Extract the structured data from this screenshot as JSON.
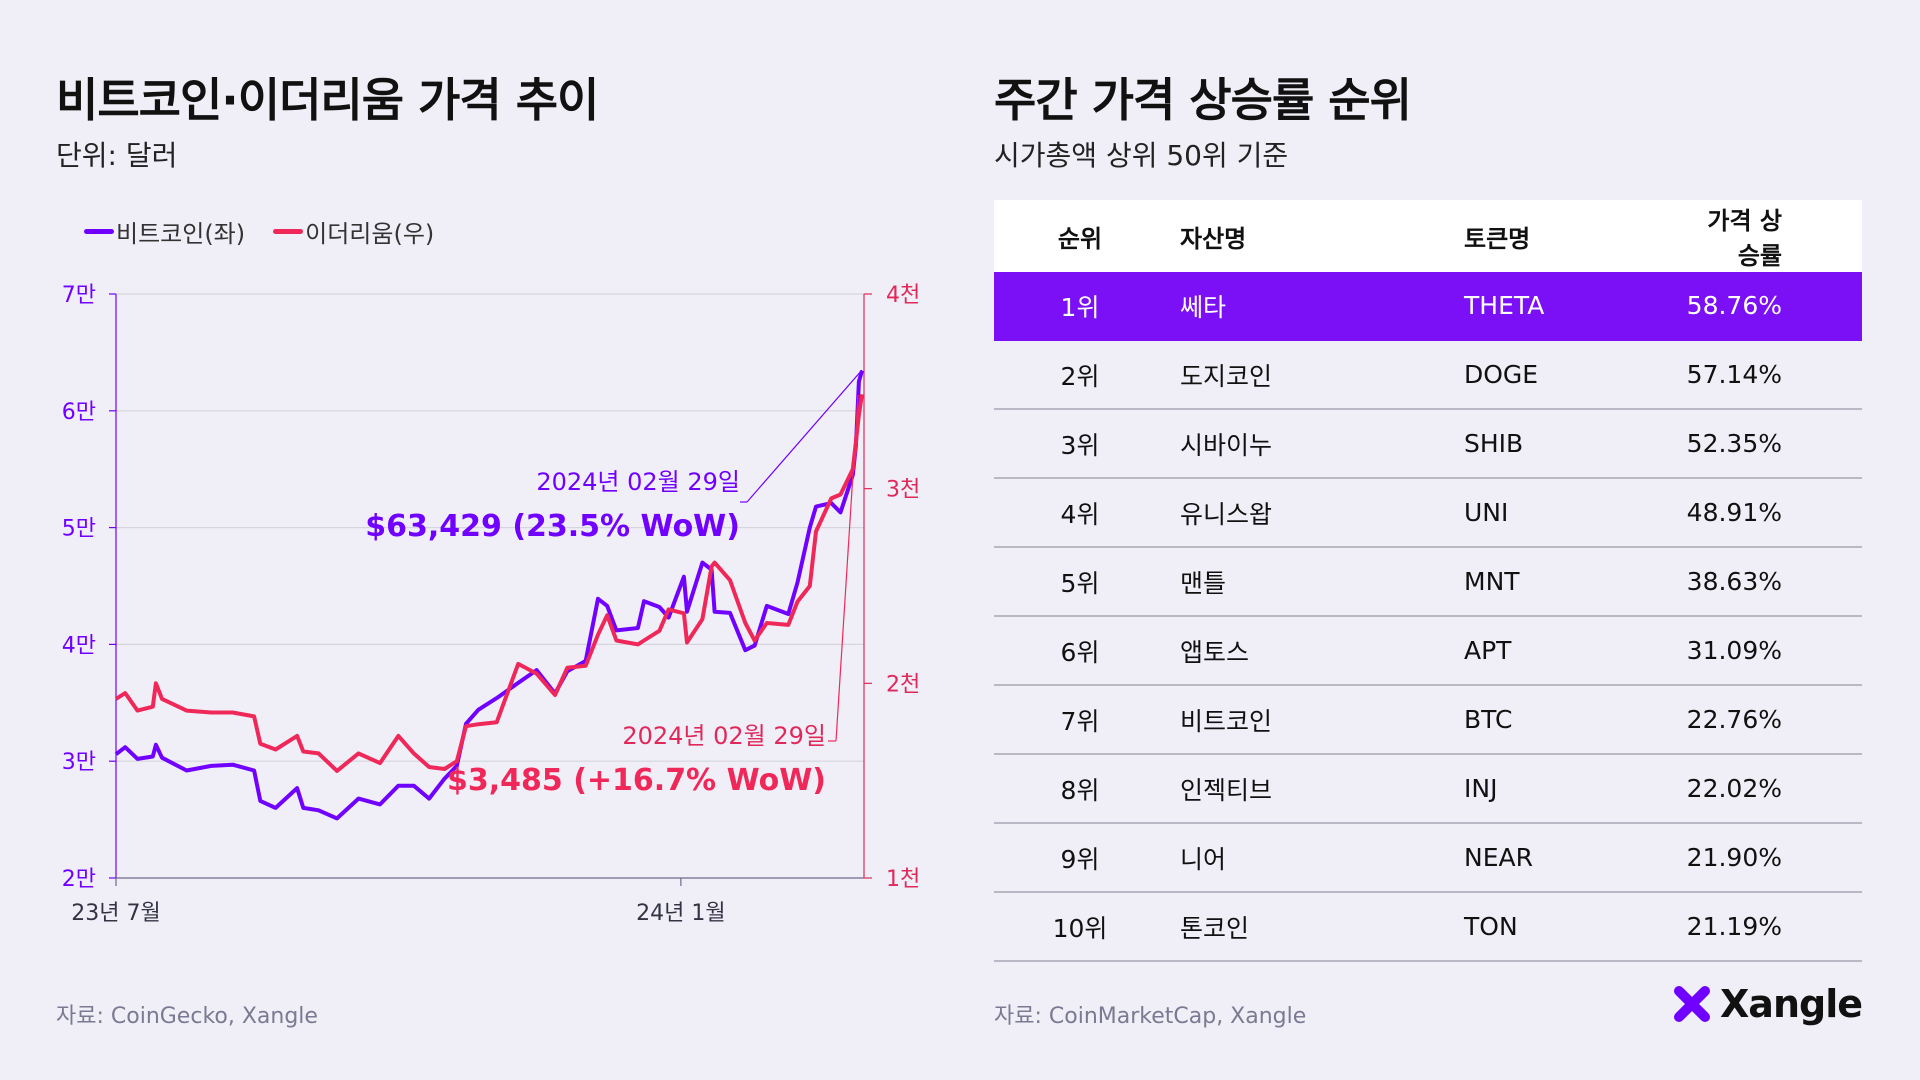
{
  "left": {
    "title": "비트코인·이더리움 가격 추이",
    "subtitle": "단위: 달러",
    "source": "자료: CoinGecko, Xangle"
  },
  "right": {
    "title": "주간 가격 상승률 순위",
    "subtitle": "시가총액 상위 50위 기준",
    "source": "자료: CoinMarketCap, Xangle",
    "columns": [
      "순위",
      "자산명",
      "토큰명",
      "가격 상승률"
    ],
    "rows": [
      {
        "rank": "1위",
        "name": "쎄타",
        "token": "THETA",
        "pct": "58.76%"
      },
      {
        "rank": "2위",
        "name": "도지코인",
        "token": "DOGE",
        "pct": "57.14%"
      },
      {
        "rank": "3위",
        "name": "시바이누",
        "token": "SHIB",
        "pct": "52.35%"
      },
      {
        "rank": "4위",
        "name": "유니스왑",
        "token": "UNI",
        "pct": "48.91%"
      },
      {
        "rank": "5위",
        "name": "맨틀",
        "token": "MNT",
        "pct": "38.63%"
      },
      {
        "rank": "6위",
        "name": "앱토스",
        "token": "APT",
        "pct": "31.09%"
      },
      {
        "rank": "7위",
        "name": "비트코인",
        "token": "BTC",
        "pct": "22.76%"
      },
      {
        "rank": "8위",
        "name": "인젝티브",
        "token": "INJ",
        "pct": "22.02%"
      },
      {
        "rank": "9위",
        "name": "니어",
        "token": "NEAR",
        "pct": "21.90%"
      },
      {
        "rank": "10위",
        "name": "톤코인",
        "token": "TON",
        "pct": "21.19%"
      }
    ],
    "highlight_color": "#7b0ff5"
  },
  "logo": {
    "text": "Xangle"
  },
  "chart_data": {
    "type": "line",
    "title": "비트코인·이더리움 가격 추이",
    "subtitle": "단위: 달러",
    "legend": [
      "비트코인(좌)",
      "이더리움(우)"
    ],
    "legend_position": "top-left",
    "grid": true,
    "x_ticks": [
      {
        "date": "2023-07-01",
        "label": "23년 7월"
      },
      {
        "date": "2024-01-01",
        "label": "24년 1월"
      }
    ],
    "xlim": [
      "2023-07-01",
      "2024-02-29"
    ],
    "y_left": {
      "range": [
        20000,
        70000
      ],
      "ticks": [
        {
          "v": 20000,
          "label": "2만"
        },
        {
          "v": 30000,
          "label": "3만"
        },
        {
          "v": 40000,
          "label": "4만"
        },
        {
          "v": 50000,
          "label": "5만"
        },
        {
          "v": 60000,
          "label": "6만"
        },
        {
          "v": 70000,
          "label": "7만"
        }
      ]
    },
    "y_right": {
      "range": [
        1000,
        4000
      ],
      "ticks": [
        {
          "v": 1000,
          "label": "1천"
        },
        {
          "v": 2000,
          "label": "2천"
        },
        {
          "v": 3000,
          "label": "3천"
        },
        {
          "v": 4000,
          "label": "4천"
        }
      ]
    },
    "series": [
      {
        "name": "비트코인(좌)",
        "axis": "left",
        "color": "#7000ff",
        "points": [
          [
            "2023-07-01",
            30600
          ],
          [
            "2023-07-04",
            31200
          ],
          [
            "2023-07-08",
            30200
          ],
          [
            "2023-07-13",
            30400
          ],
          [
            "2023-07-14",
            31400
          ],
          [
            "2023-07-16",
            30300
          ],
          [
            "2023-07-24",
            29200
          ],
          [
            "2023-08-01",
            29600
          ],
          [
            "2023-08-08",
            29700
          ],
          [
            "2023-08-15",
            29200
          ],
          [
            "2023-08-17",
            26600
          ],
          [
            "2023-08-22",
            26000
          ],
          [
            "2023-08-29",
            27700
          ],
          [
            "2023-08-31",
            26000
          ],
          [
            "2023-09-05",
            25800
          ],
          [
            "2023-09-11",
            25100
          ],
          [
            "2023-09-18",
            26800
          ],
          [
            "2023-09-25",
            26300
          ],
          [
            "2023-10-01",
            27900
          ],
          [
            "2023-10-06",
            27900
          ],
          [
            "2023-10-11",
            26800
          ],
          [
            "2023-10-16",
            28500
          ],
          [
            "2023-10-20",
            29600
          ],
          [
            "2023-10-23",
            33200
          ],
          [
            "2023-10-27",
            34400
          ],
          [
            "2023-11-02",
            35400
          ],
          [
            "2023-11-09",
            36700
          ],
          [
            "2023-11-15",
            37800
          ],
          [
            "2023-11-21",
            35800
          ],
          [
            "2023-11-25",
            37700
          ],
          [
            "2023-12-01",
            38600
          ],
          [
            "2023-12-05",
            43900
          ],
          [
            "2023-12-08",
            43300
          ],
          [
            "2023-12-11",
            41200
          ],
          [
            "2023-12-18",
            41400
          ],
          [
            "2023-12-20",
            43700
          ],
          [
            "2023-12-25",
            43200
          ],
          [
            "2023-12-28",
            42300
          ],
          [
            "2024-01-02",
            45800
          ],
          [
            "2024-01-03",
            42800
          ],
          [
            "2024-01-08",
            47000
          ],
          [
            "2024-01-11",
            46400
          ],
          [
            "2024-01-12",
            42800
          ],
          [
            "2024-01-17",
            42700
          ],
          [
            "2024-01-22",
            39500
          ],
          [
            "2024-01-25",
            39900
          ],
          [
            "2024-01-29",
            43300
          ],
          [
            "2024-02-05",
            42600
          ],
          [
            "2024-02-08",
            45300
          ],
          [
            "2024-02-12",
            50000
          ],
          [
            "2024-02-14",
            51800
          ],
          [
            "2024-02-19",
            52100
          ],
          [
            "2024-02-22",
            51300
          ],
          [
            "2024-02-26",
            54500
          ],
          [
            "2024-02-27",
            57000
          ],
          [
            "2024-02-28",
            62500
          ],
          [
            "2024-02-29",
            63429
          ]
        ]
      },
      {
        "name": "이더리움(우)",
        "axis": "right",
        "color": "#f0285a",
        "points": [
          [
            "2023-07-01",
            1920
          ],
          [
            "2023-07-04",
            1950
          ],
          [
            "2023-07-08",
            1860
          ],
          [
            "2023-07-13",
            1880
          ],
          [
            "2023-07-14",
            2000
          ],
          [
            "2023-07-16",
            1920
          ],
          [
            "2023-07-24",
            1860
          ],
          [
            "2023-08-01",
            1850
          ],
          [
            "2023-08-08",
            1850
          ],
          [
            "2023-08-15",
            1830
          ],
          [
            "2023-08-17",
            1690
          ],
          [
            "2023-08-22",
            1660
          ],
          [
            "2023-08-29",
            1730
          ],
          [
            "2023-08-31",
            1650
          ],
          [
            "2023-09-05",
            1640
          ],
          [
            "2023-09-11",
            1550
          ],
          [
            "2023-09-18",
            1640
          ],
          [
            "2023-09-25",
            1590
          ],
          [
            "2023-10-01",
            1730
          ],
          [
            "2023-10-06",
            1640
          ],
          [
            "2023-10-11",
            1570
          ],
          [
            "2023-10-16",
            1560
          ],
          [
            "2023-10-20",
            1600
          ],
          [
            "2023-10-23",
            1780
          ],
          [
            "2023-10-27",
            1790
          ],
          [
            "2023-11-02",
            1800
          ],
          [
            "2023-11-09",
            2100
          ],
          [
            "2023-11-15",
            2050
          ],
          [
            "2023-11-21",
            1940
          ],
          [
            "2023-11-25",
            2080
          ],
          [
            "2023-12-01",
            2090
          ],
          [
            "2023-12-05",
            2250
          ],
          [
            "2023-12-08",
            2350
          ],
          [
            "2023-12-11",
            2220
          ],
          [
            "2023-12-18",
            2200
          ],
          [
            "2023-12-20",
            2220
          ],
          [
            "2023-12-25",
            2270
          ],
          [
            "2023-12-28",
            2380
          ],
          [
            "2024-01-02",
            2360
          ],
          [
            "2024-01-03",
            2210
          ],
          [
            "2024-01-08",
            2330
          ],
          [
            "2024-01-11",
            2600
          ],
          [
            "2024-01-12",
            2620
          ],
          [
            "2024-01-17",
            2530
          ],
          [
            "2024-01-22",
            2310
          ],
          [
            "2024-01-25",
            2220
          ],
          [
            "2024-01-29",
            2310
          ],
          [
            "2024-02-05",
            2300
          ],
          [
            "2024-02-08",
            2420
          ],
          [
            "2024-02-12",
            2500
          ],
          [
            "2024-02-14",
            2780
          ],
          [
            "2024-02-19",
            2950
          ],
          [
            "2024-02-22",
            2970
          ],
          [
            "2024-02-26",
            3100
          ],
          [
            "2024-02-27",
            3240
          ],
          [
            "2024-02-28",
            3380
          ],
          [
            "2024-02-29",
            3485
          ]
        ]
      }
    ],
    "annotations": [
      {
        "series": "비트코인(좌)",
        "date_label": "2024년 02월 29일",
        "value_label": "$63,429 (23.5% WoW)"
      },
      {
        "series": "이더리움(우)",
        "date_label": "2024년 02월 29일",
        "value_label": "$3,485 (+16.7% WoW)"
      }
    ]
  }
}
